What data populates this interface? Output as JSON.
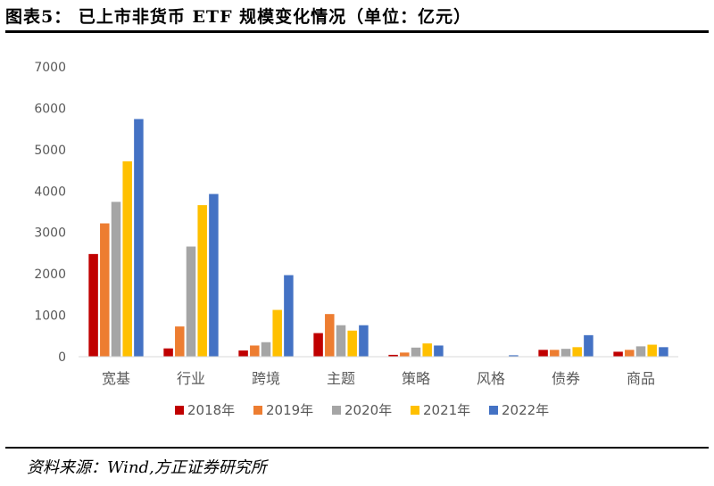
{
  "title": "图表5：  已上市非货币 ETF 规模变化情况（单位：亿元）",
  "source": "资料来源：Wind,方正证券研究所",
  "chart_data": {
    "type": "bar",
    "categories": [
      "宽基",
      "行业",
      "跨境",
      "主题",
      "策略",
      "风格",
      "债券",
      "商品"
    ],
    "ylim": [
      0,
      7000
    ],
    "yticks": [
      0,
      1000,
      2000,
      3000,
      4000,
      5000,
      6000,
      7000
    ],
    "grid": false,
    "legend_position": "bottom",
    "series": [
      {
        "name": "2018年",
        "color": "#C00000",
        "values": [
          2480,
          200,
          150,
          570,
          45,
          0,
          165,
          120
        ]
      },
      {
        "name": "2019年",
        "color": "#ED7D31",
        "values": [
          3220,
          730,
          270,
          1030,
          100,
          0,
          165,
          165
        ]
      },
      {
        "name": "2020年",
        "color": "#A5A5A5",
        "values": [
          3740,
          2660,
          350,
          760,
          220,
          0,
          190,
          250
        ]
      },
      {
        "name": "2021年",
        "color": "#FFC000",
        "values": [
          4720,
          3660,
          1130,
          630,
          320,
          10,
          230,
          290
        ]
      },
      {
        "name": "2022年",
        "color": "#4472C4",
        "values": [
          5740,
          3930,
          1970,
          760,
          270,
          35,
          520,
          230
        ]
      }
    ]
  }
}
